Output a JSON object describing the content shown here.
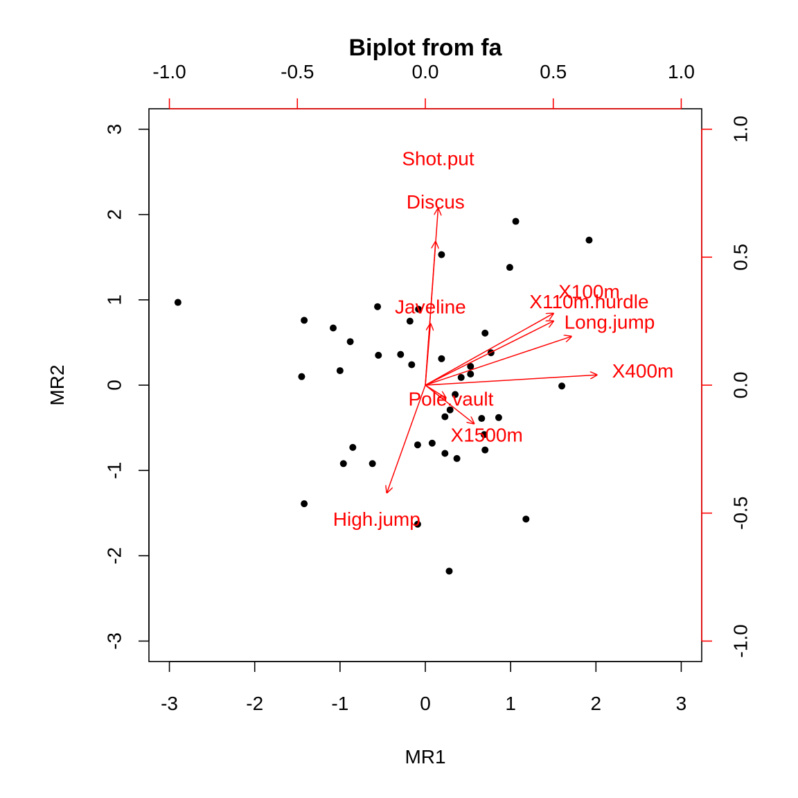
{
  "chart_data": {
    "type": "scatter",
    "title": "Biplot from fa",
    "xlabel": "MR1",
    "ylabel": "MR2",
    "xlim": [
      -3.24,
      3.24
    ],
    "ylim": [
      -3.24,
      3.24
    ],
    "x_ticks": [
      -3,
      -2,
      -1,
      0,
      1,
      2,
      3
    ],
    "y_ticks": [
      -3,
      -2,
      -1,
      0,
      1,
      2,
      3
    ],
    "x_tick_labels": [
      "-3",
      "-2",
      "-1",
      "0",
      "1",
      "2",
      "3"
    ],
    "y_tick_labels": [
      "-3",
      "-2",
      "-1",
      "0",
      "1",
      "2",
      "3"
    ],
    "loading_lim": [
      -1.08,
      1.08
    ],
    "loading_ticks": [
      -1.0,
      -0.5,
      0.0,
      0.5,
      1.0
    ],
    "loading_tick_labels": [
      "-1.0",
      "-0.5",
      "0.0",
      "0.5",
      "1.0"
    ],
    "point_color": "#000000",
    "loading_color": "#ff0000",
    "scores": [
      {
        "x": -2.9,
        "y": 0.97
      },
      {
        "x": -1.42,
        "y": 0.76
      },
      {
        "x": -1.45,
        "y": 0.1
      },
      {
        "x": -1.08,
        "y": 0.67
      },
      {
        "x": -0.88,
        "y": 0.51
      },
      {
        "x": -1.0,
        "y": 0.17
      },
      {
        "x": -0.56,
        "y": 0.92
      },
      {
        "x": -0.08,
        "y": 0.89
      },
      {
        "x": -0.18,
        "y": 0.75
      },
      {
        "x": -0.55,
        "y": 0.35
      },
      {
        "x": -0.29,
        "y": 0.36
      },
      {
        "x": -0.16,
        "y": 0.24
      },
      {
        "x": 0.19,
        "y": 1.53
      },
      {
        "x": 1.06,
        "y": 1.92
      },
      {
        "x": 0.99,
        "y": 1.38
      },
      {
        "x": 1.92,
        "y": 1.7
      },
      {
        "x": 0.7,
        "y": 0.61
      },
      {
        "x": 0.77,
        "y": 0.38
      },
      {
        "x": 0.19,
        "y": 0.31
      },
      {
        "x": 0.53,
        "y": 0.22
      },
      {
        "x": 0.53,
        "y": 0.13
      },
      {
        "x": 0.42,
        "y": 0.09
      },
      {
        "x": 1.6,
        "y": -0.01
      },
      {
        "x": 0.35,
        "y": -0.11
      },
      {
        "x": 0.29,
        "y": -0.29
      },
      {
        "x": 0.23,
        "y": -0.37
      },
      {
        "x": 0.66,
        "y": -0.39
      },
      {
        "x": 0.86,
        "y": -0.38
      },
      {
        "x": 0.69,
        "y": -0.58
      },
      {
        "x": 0.08,
        "y": -0.68
      },
      {
        "x": -0.09,
        "y": -0.7
      },
      {
        "x": -0.85,
        "y": -0.73
      },
      {
        "x": 0.23,
        "y": -0.8
      },
      {
        "x": 0.37,
        "y": -0.86
      },
      {
        "x": 0.7,
        "y": -0.76
      },
      {
        "x": -0.96,
        "y": -0.92
      },
      {
        "x": -0.62,
        "y": -0.92
      },
      {
        "x": -1.42,
        "y": -1.39
      },
      {
        "x": -0.09,
        "y": -1.63
      },
      {
        "x": 1.18,
        "y": -1.57
      },
      {
        "x": 0.28,
        "y": -2.18
      }
    ],
    "loadings": [
      {
        "name": "Shot.put",
        "x": 0.05,
        "y": 0.69,
        "lx": 0.05,
        "ly": 0.88
      },
      {
        "name": "Discus",
        "x": 0.04,
        "y": 0.56,
        "lx": 0.04,
        "ly": 0.71
      },
      {
        "name": "Javeline",
        "x": 0.02,
        "y": 0.24,
        "lx": 0.02,
        "ly": 0.3
      },
      {
        "name": "X100m",
        "x": 0.5,
        "y": 0.28,
        "lx": 0.64,
        "ly": 0.36
      },
      {
        "name": "X110m.hurdle",
        "x": 0.5,
        "y": 0.25,
        "lx": 0.64,
        "ly": 0.32
      },
      {
        "name": "Long.jump",
        "x": 0.57,
        "y": 0.19,
        "lx": 0.72,
        "ly": 0.24
      },
      {
        "name": "X400m",
        "x": 0.67,
        "y": 0.04,
        "lx": 0.85,
        "ly": 0.05
      },
      {
        "name": "Pole.vault",
        "x": 0.08,
        "y": -0.05,
        "lx": 0.1,
        "ly": -0.06
      },
      {
        "name": "X1500m",
        "x": 0.19,
        "y": -0.15,
        "lx": 0.24,
        "ly": -0.2
      },
      {
        "name": "High.jump",
        "x": -0.15,
        "y": -0.42,
        "lx": -0.19,
        "ly": -0.53
      }
    ]
  }
}
